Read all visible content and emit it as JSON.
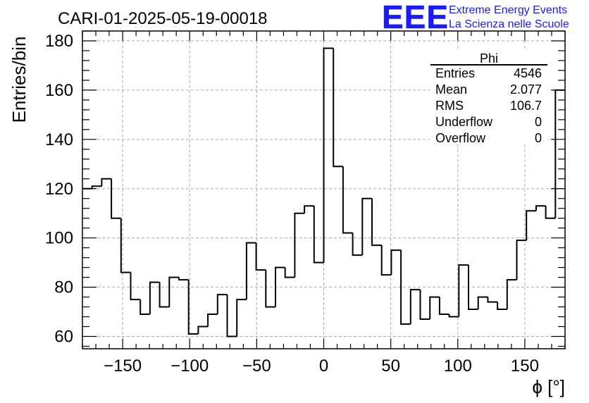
{
  "chart_data": {
    "type": "histogram",
    "title": "CARI-01-2025-05-19-00018",
    "xlabel": "ϕ [°]",
    "ylabel": "Entries/bin",
    "xlim": [
      -180,
      180
    ],
    "ylim": [
      55,
      184
    ],
    "bin_width": 7.2,
    "x_ticks": [
      -150,
      -100,
      -50,
      0,
      50,
      100,
      150
    ],
    "x_tick_labels": [
      "−150",
      "−100",
      "−50",
      "0",
      "50",
      "100",
      "150"
    ],
    "y_ticks": [
      60,
      80,
      100,
      120,
      140,
      160,
      180
    ],
    "y_tick_labels": [
      "60",
      "80",
      "100",
      "120",
      "140",
      "160",
      "180"
    ],
    "grid": true,
    "bin_edges_start": -180,
    "values": [
      120,
      121,
      124,
      108,
      86,
      75,
      69,
      82,
      72,
      84,
      83,
      61,
      64,
      69,
      77,
      60,
      75,
      98,
      87,
      72,
      88,
      84,
      110,
      113,
      90,
      177,
      129,
      102,
      93,
      116,
      97,
      85,
      95,
      65,
      79,
      67,
      76,
      69,
      68,
      89,
      71,
      76,
      74,
      71,
      83,
      99,
      111,
      113,
      108,
      160
    ],
    "series": [
      {
        "name": "Phi",
        "values": [
          120,
          121,
          124,
          108,
          86,
          75,
          69,
          82,
          72,
          84,
          83,
          61,
          64,
          69,
          77,
          60,
          75,
          98,
          87,
          72,
          88,
          84,
          110,
          113,
          90,
          177,
          129,
          102,
          93,
          116,
          97,
          85,
          95,
          65,
          79,
          67,
          76,
          69,
          68,
          89,
          71,
          76,
          74,
          71,
          83,
          99,
          111,
          113,
          108,
          160
        ]
      }
    ],
    "stats": {
      "name": "Phi",
      "rows": [
        {
          "label": "Entries",
          "value": "4546"
        },
        {
          "label": "Mean",
          "value": "2.077"
        },
        {
          "label": "RMS",
          "value": "106.7"
        },
        {
          "label": "Underflow",
          "value": "0"
        },
        {
          "label": "Overflow",
          "value": "0"
        }
      ]
    }
  },
  "logo": {
    "mark": "EEE",
    "line1": "Extreme Energy Events",
    "line2": "La Scienza nelle Scuole",
    "color": "#1a1aff"
  },
  "colors": {
    "line": "#000000",
    "grid": "#aaaaaa"
  }
}
